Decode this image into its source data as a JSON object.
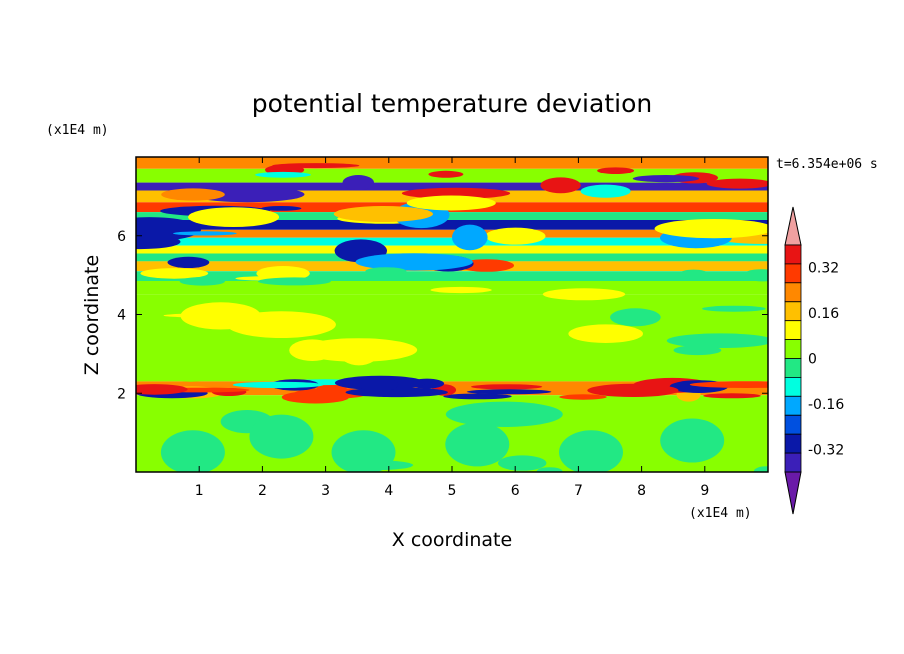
{
  "chart_data": {
    "type": "heatmap",
    "title": "potential temperature deviation",
    "xlabel": "X coordinate",
    "ylabel": "Z coordinate",
    "x_unit": "(x1E4 m)",
    "y_unit": "(x1E4 m)",
    "time_label": "t=6.354e+06 s",
    "xlim": [
      0,
      10
    ],
    "ylim": [
      0,
      8
    ],
    "x_ticks": [
      "1",
      "2",
      "3",
      "4",
      "5",
      "6",
      "7",
      "8",
      "9"
    ],
    "y_ticks": [
      "2",
      "4",
      "6"
    ],
    "x_tick_values": [
      1,
      2,
      3,
      4,
      5,
      6,
      7,
      8,
      9
    ],
    "y_tick_values": [
      2,
      4,
      6
    ],
    "colorbar": {
      "levels": [
        -0.48,
        -0.4,
        -0.32,
        -0.24,
        -0.16,
        -0.08,
        0,
        0.08,
        0.16,
        0.24,
        0.32,
        0.4,
        0.48
      ],
      "colors": [
        "#6a1aa8",
        "#3b1fb8",
        "#0a18a8",
        "#0050e0",
        "#00a8ff",
        "#00ffe0",
        "#22e884",
        "#88ff00",
        "#ffff00",
        "#ffc000",
        "#ff8800",
        "#ff3a00",
        "#e81414",
        "#f0a0a0"
      ],
      "labels": [
        "0.32",
        "0.16",
        "0",
        "-0.16",
        "-0.32"
      ],
      "label_values": [
        0.32,
        0.16,
        0,
        -0.16,
        -0.32
      ]
    },
    "bands": [
      {
        "z": [
          7.7,
          8.0
        ],
        "value": 0.28
      },
      {
        "z": [
          7.35,
          7.7
        ],
        "value": 0.05
      },
      {
        "z": [
          7.15,
          7.35
        ],
        "value": -0.45
      },
      {
        "z": [
          6.85,
          7.15
        ],
        "value": 0.18
      },
      {
        "z": [
          6.6,
          6.85
        ],
        "value": 0.36
      },
      {
        "z": [
          6.4,
          6.6
        ],
        "value": -0.05
      },
      {
        "z": [
          6.15,
          6.4
        ],
        "value": -0.38
      },
      {
        "z": [
          5.95,
          6.15
        ],
        "value": 0.25
      },
      {
        "z": [
          5.75,
          5.95
        ],
        "value": -0.12
      },
      {
        "z": [
          5.55,
          5.75
        ],
        "value": 0.1
      },
      {
        "z": [
          5.35,
          5.55
        ],
        "value": -0.08
      },
      {
        "z": [
          5.1,
          5.35
        ],
        "value": 0.2
      },
      {
        "z": [
          4.85,
          5.1
        ],
        "value": -0.06
      },
      {
        "z": [
          4.5,
          4.85
        ],
        "value": 0.04
      },
      {
        "z": [
          2.3,
          4.5
        ],
        "value": 0.02
      },
      {
        "z": [
          1.95,
          2.3
        ],
        "value": 0.3
      },
      {
        "z": [
          0,
          1.95
        ],
        "value": 0.03
      }
    ]
  }
}
